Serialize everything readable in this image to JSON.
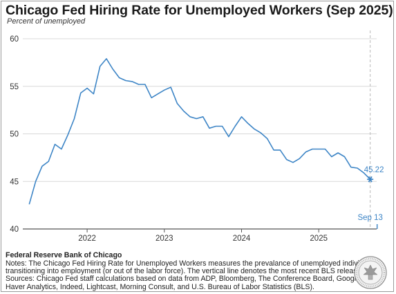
{
  "title": "Chicago Fed Hiring Rate for Unemployed Workers (Sep 2025)",
  "subtitle": "Percent of unemployed",
  "footer": {
    "source": "Federal Reserve Bank of Chicago",
    "notes": [
      "Notes: The Chicago Fed Hiring Rate for Unemployed Workers measures the prevalance of unemployed individuals",
      "transitioning into employment (or out of the labor force). The vertical line denotes the most recent BLS release.",
      "Sources: Chicago Fed staff calculations based on data from ADP, Bloomberg, The Conference Board, Google,",
      "Haver Analytics, Indeed, Lightcast, Morning Consult, and U.S. Bureau of Labor Statistics (BLS)."
    ]
  },
  "colors": {
    "line": "#3d85c6",
    "grid": "#d9d9d9",
    "vline": "#b7b7b7"
  },
  "icons": {
    "seal": "federal-reserve-seal-icon",
    "last_point": "asterisk-marker-icon"
  },
  "chart_data": {
    "type": "line",
    "title": "Chicago Fed Hiring Rate for Unemployed Workers (Sep 2025)",
    "ylabel": "Percent of unemployed",
    "xlabel": "",
    "ylim": [
      40,
      60
    ],
    "yticks": [
      40,
      45,
      50,
      55,
      60
    ],
    "xlim": [
      "2021-03",
      "2025-10"
    ],
    "xtick_labels": [
      "2022",
      "2023",
      "2024",
      "2025"
    ],
    "grid": "horizontal",
    "legend": "none",
    "series": [
      {
        "x": [
          "2021-04",
          "2021-05",
          "2021-06",
          "2021-07",
          "2021-08",
          "2021-09",
          "2021-10",
          "2021-11",
          "2021-12",
          "2022-01",
          "2022-02",
          "2022-03",
          "2022-04",
          "2022-05",
          "2022-06",
          "2022-07",
          "2022-08",
          "2022-09",
          "2022-10",
          "2022-11",
          "2022-12",
          "2023-01",
          "2023-02",
          "2023-03",
          "2023-04",
          "2023-05",
          "2023-06",
          "2023-07",
          "2023-08",
          "2023-09",
          "2023-10",
          "2023-11",
          "2023-12",
          "2024-01",
          "2024-02",
          "2024-03",
          "2024-04",
          "2024-05",
          "2024-06",
          "2024-07",
          "2024-08",
          "2024-09",
          "2024-10",
          "2024-11",
          "2024-12",
          "2025-01",
          "2025-02",
          "2025-03",
          "2025-04",
          "2025-05",
          "2025-06",
          "2025-07",
          "2025-08",
          "2025-09"
        ],
        "y": [
          42.6,
          45.0,
          46.6,
          47.1,
          48.9,
          48.4,
          49.9,
          51.6,
          54.3,
          54.8,
          54.2,
          57.1,
          57.9,
          56.8,
          55.9,
          55.6,
          55.5,
          55.2,
          55.2,
          53.8,
          54.2,
          54.6,
          54.9,
          53.2,
          52.4,
          51.8,
          51.6,
          51.8,
          50.6,
          50.8,
          50.8,
          49.7,
          50.8,
          51.8,
          51.1,
          50.5,
          50.1,
          49.5,
          48.3,
          48.3,
          47.3,
          47.0,
          47.4,
          48.1,
          48.4,
          48.4,
          48.4,
          47.6,
          48.0,
          47.6,
          46.5,
          46.4,
          45.9,
          45.22
        ]
      }
    ],
    "annotations": [
      {
        "text": "45.22",
        "x": "2025-09",
        "y": 45.22
      },
      {
        "text": "Sep 13",
        "x": "2025-09",
        "note": "most recent BLS release"
      }
    ],
    "vline_x": "2025-09"
  }
}
